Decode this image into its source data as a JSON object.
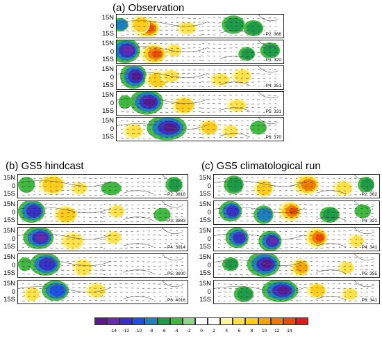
{
  "panel_groups": [
    {
      "id": "obs",
      "title": "(a) Observation",
      "y_ticks": [
        "15N",
        "0",
        "15S"
      ],
      "maps": [
        {
          "label": "P2: 366",
          "anomalies": [
            {
              "c": -0.1,
              "w": 0.1,
              "h": 0.45,
              "v": 8
            },
            {
              "c": 0.18,
              "w": 0.08,
              "h": 0.45,
              "v": 12
            },
            {
              "c": 0.14,
              "w": 0.06,
              "h": 0.4,
              "v": 6
            },
            {
              "c": 0.42,
              "w": 0.06,
              "h": 0.3,
              "v": 4
            },
            {
              "c": 0.7,
              "w": 0.07,
              "h": 0.4,
              "v": -4
            },
            {
              "c": 0.82,
              "w": 0.06,
              "h": 0.35,
              "v": -4
            },
            {
              "c": 0.02,
              "w": 0.05,
              "h": 0.3,
              "v": -6
            }
          ]
        },
        {
          "label": "P3: 320",
          "anomalies": [
            {
              "c": 0.05,
              "w": 0.09,
              "h": 0.55,
              "v": -12
            },
            {
              "c": 0.22,
              "w": 0.08,
              "h": 0.45,
              "v": 12
            },
            {
              "c": 0.34,
              "w": 0.05,
              "h": 0.3,
              "v": 4
            },
            {
              "c": 0.78,
              "w": 0.05,
              "h": 0.3,
              "v": -4
            },
            {
              "c": 0.92,
              "w": 0.06,
              "h": 0.35,
              "v": -4
            }
          ]
        },
        {
          "label": "P4: 351",
          "anomalies": [
            {
              "c": 0.1,
              "w": 0.08,
              "h": 0.55,
              "v": -14
            },
            {
              "c": 0.24,
              "w": 0.07,
              "h": 0.4,
              "v": 6
            },
            {
              "c": 0.32,
              "w": 0.06,
              "h": 0.3,
              "v": 4
            },
            {
              "c": 0.62,
              "w": 0.06,
              "h": 0.3,
              "v": 4
            },
            {
              "c": 0.75,
              "w": 0.06,
              "h": 0.35,
              "v": 3
            }
          ]
        },
        {
          "label": "P5: 331",
          "anomalies": [
            {
              "c": 0.18,
              "w": 0.1,
              "h": 0.55,
              "v": -14
            },
            {
              "c": 0.4,
              "w": 0.07,
              "h": 0.4,
              "v": 6
            },
            {
              "c": 0.05,
              "w": 0.04,
              "h": 0.3,
              "v": -3
            },
            {
              "c": 0.72,
              "w": 0.06,
              "h": 0.3,
              "v": 3
            }
          ]
        },
        {
          "label": "P6: 370",
          "anomalies": [
            {
              "c": 0.3,
              "w": 0.12,
              "h": 0.55,
              "v": -14
            },
            {
              "c": 0.1,
              "w": 0.06,
              "h": 0.35,
              "v": 4
            },
            {
              "c": 0.55,
              "w": 0.06,
              "h": 0.35,
              "v": 6
            },
            {
              "c": 0.68,
              "w": 0.05,
              "h": 0.3,
              "v": 3
            },
            {
              "c": 0.85,
              "w": 0.05,
              "h": 0.3,
              "v": -3
            }
          ]
        }
      ]
    },
    {
      "id": "hind",
      "title": "(b) GS5 hindcast",
      "y_ticks": [
        "15N",
        "0",
        "15S"
      ],
      "maps": [
        {
          "label": "P2: 3918",
          "anomalies": [
            {
              "c": 0.2,
              "w": 0.08,
              "h": 0.45,
              "v": 6
            },
            {
              "c": 0.36,
              "w": 0.05,
              "h": 0.3,
              "v": 4
            },
            {
              "c": 0.05,
              "w": 0.05,
              "h": 0.35,
              "v": -3
            },
            {
              "c": 0.55,
              "w": 0.06,
              "h": 0.3,
              "v": -3
            },
            {
              "c": 0.92,
              "w": 0.05,
              "h": 0.35,
              "v": -4
            }
          ]
        },
        {
          "label": "P3: 3883",
          "anomalies": [
            {
              "c": 0.08,
              "w": 0.08,
              "h": 0.5,
              "v": -10
            },
            {
              "c": 0.28,
              "w": 0.07,
              "h": 0.4,
              "v": 5
            },
            {
              "c": 0.58,
              "w": 0.05,
              "h": 0.3,
              "v": 3
            },
            {
              "c": 0.85,
              "w": 0.05,
              "h": 0.3,
              "v": -3
            }
          ]
        },
        {
          "label": "P4: 3914",
          "anomalies": [
            {
              "c": 0.12,
              "w": 0.09,
              "h": 0.5,
              "v": -12
            },
            {
              "c": 0.32,
              "w": 0.07,
              "h": 0.4,
              "v": 4
            },
            {
              "c": 0.56,
              "w": 0.05,
              "h": 0.3,
              "v": 3
            }
          ]
        },
        {
          "label": "P5: 3800",
          "anomalies": [
            {
              "c": 0.16,
              "w": 0.09,
              "h": 0.5,
              "v": -10
            },
            {
              "c": 0.38,
              "w": 0.06,
              "h": 0.4,
              "v": 4
            },
            {
              "c": 0.04,
              "w": 0.04,
              "h": 0.3,
              "v": -3
            }
          ]
        },
        {
          "label": "P6: 4016",
          "anomalies": [
            {
              "c": 0.22,
              "w": 0.08,
              "h": 0.45,
              "v": -8
            },
            {
              "c": 0.08,
              "w": 0.05,
              "h": 0.35,
              "v": 4
            },
            {
              "c": 0.46,
              "w": 0.06,
              "h": 0.35,
              "v": 4
            }
          ]
        }
      ]
    },
    {
      "id": "clim",
      "title": "(c) GS5 climatological run",
      "y_ticks": [
        "15N",
        "0",
        "15S"
      ],
      "maps": [
        {
          "label": "P2: 362",
          "anomalies": [
            {
              "c": 0.12,
              "w": 0.06,
              "h": 0.4,
              "v": -5
            },
            {
              "c": 0.3,
              "w": 0.06,
              "h": 0.4,
              "v": 6
            },
            {
              "c": 0.56,
              "w": 0.08,
              "h": 0.45,
              "v": 10
            },
            {
              "c": 0.78,
              "w": 0.06,
              "h": 0.35,
              "v": 4
            },
            {
              "c": 0.92,
              "w": 0.05,
              "h": 0.35,
              "v": -4
            }
          ]
        },
        {
          "label": "P3: 321",
          "anomalies": [
            {
              "c": 0.1,
              "w": 0.07,
              "h": 0.45,
              "v": -10
            },
            {
              "c": 0.3,
              "w": 0.06,
              "h": 0.4,
              "v": -6
            },
            {
              "c": 0.46,
              "w": 0.07,
              "h": 0.45,
              "v": 12
            },
            {
              "c": 0.7,
              "w": 0.06,
              "h": 0.35,
              "v": -4
            },
            {
              "c": 0.9,
              "w": 0.05,
              "h": 0.3,
              "v": -3
            }
          ]
        },
        {
          "label": "P4: 341",
          "anomalies": [
            {
              "c": 0.14,
              "w": 0.07,
              "h": 0.45,
              "v": -10
            },
            {
              "c": 0.34,
              "w": 0.07,
              "h": 0.45,
              "v": -12
            },
            {
              "c": 0.62,
              "w": 0.07,
              "h": 0.45,
              "v": 12
            },
            {
              "c": 0.86,
              "w": 0.05,
              "h": 0.3,
              "v": 4
            }
          ]
        },
        {
          "label": "P5: 355",
          "anomalies": [
            {
              "c": 0.3,
              "w": 0.1,
              "h": 0.55,
              "v": -14
            },
            {
              "c": 0.52,
              "w": 0.06,
              "h": 0.4,
              "v": 8
            },
            {
              "c": 0.1,
              "w": 0.05,
              "h": 0.3,
              "v": -4
            },
            {
              "c": 0.8,
              "w": 0.05,
              "h": 0.3,
              "v": 4
            }
          ]
        },
        {
          "label": "P6: 341",
          "anomalies": [
            {
              "c": 0.4,
              "w": 0.11,
              "h": 0.5,
              "v": -14
            },
            {
              "c": 0.18,
              "w": 0.06,
              "h": 0.35,
              "v": -4
            },
            {
              "c": 0.62,
              "w": 0.06,
              "h": 0.35,
              "v": 6
            },
            {
              "c": 0.82,
              "w": 0.05,
              "h": 0.3,
              "v": 4
            }
          ]
        }
      ]
    }
  ],
  "colorbar": {
    "ticks": [
      "-14",
      "-12",
      "-10",
      "-8",
      "-6",
      "-4",
      "-2",
      "0",
      "2",
      "4",
      "6",
      "8",
      "10",
      "12",
      "14"
    ],
    "colors": [
      "#5a1a8c",
      "#6a2ab0",
      "#3a2fc8",
      "#1f4fe0",
      "#1f7fbf",
      "#1f9a4a",
      "#3fb83f",
      "#8fd68f",
      "#ffffff",
      "#ffffff",
      "#fff59d",
      "#ffe14a",
      "#ffcc1a",
      "#f5a300",
      "#ef7a00",
      "#e84a00",
      "#e01a1a"
    ]
  }
}
